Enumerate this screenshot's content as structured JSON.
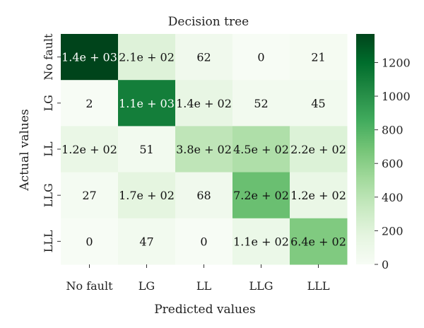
{
  "chart_data": {
    "type": "heatmap",
    "title": "Decision tree",
    "xlabel": "Predicted values",
    "ylabel": "Actual values",
    "x_categories": [
      "No fault",
      "LG",
      "LL",
      "LLG",
      "LLL"
    ],
    "y_categories": [
      "No fault",
      "LG",
      "LL",
      "LLG",
      "LLL"
    ],
    "values": [
      [
        1400,
        210,
        62,
        0,
        21
      ],
      [
        2,
        1100,
        140,
        52,
        45
      ],
      [
        120,
        51,
        380,
        450,
        220
      ],
      [
        27,
        170,
        68,
        720,
        120
      ],
      [
        0,
        47,
        0,
        110,
        640
      ]
    ],
    "cell_labels": [
      [
        "1.4e + 03",
        "2.1e + 02",
        "62",
        "0",
        "21"
      ],
      [
        "2",
        "1.1e + 03",
        "1.4e + 02",
        "52",
        "45"
      ],
      [
        "1.2e + 02",
        "51",
        "3.8e + 02",
        "4.5e + 02",
        "2.2e + 02"
      ],
      [
        "27",
        "1.7e + 02",
        "68",
        "7.2e + 02",
        "1.2e + 02"
      ],
      [
        "0",
        "47",
        "0",
        "1.1e + 02",
        "6.4e + 02"
      ]
    ],
    "colorbar": {
      "min": 0,
      "max": 1370,
      "ticks": [
        0,
        200,
        400,
        600,
        800,
        1000,
        1200
      ],
      "colors": [
        "#f7fcf5",
        "#e5f5e0",
        "#c7e9c0",
        "#a1d99b",
        "#74c476",
        "#41ab5d",
        "#238b45",
        "#006d2c",
        "#00441b"
      ]
    }
  }
}
